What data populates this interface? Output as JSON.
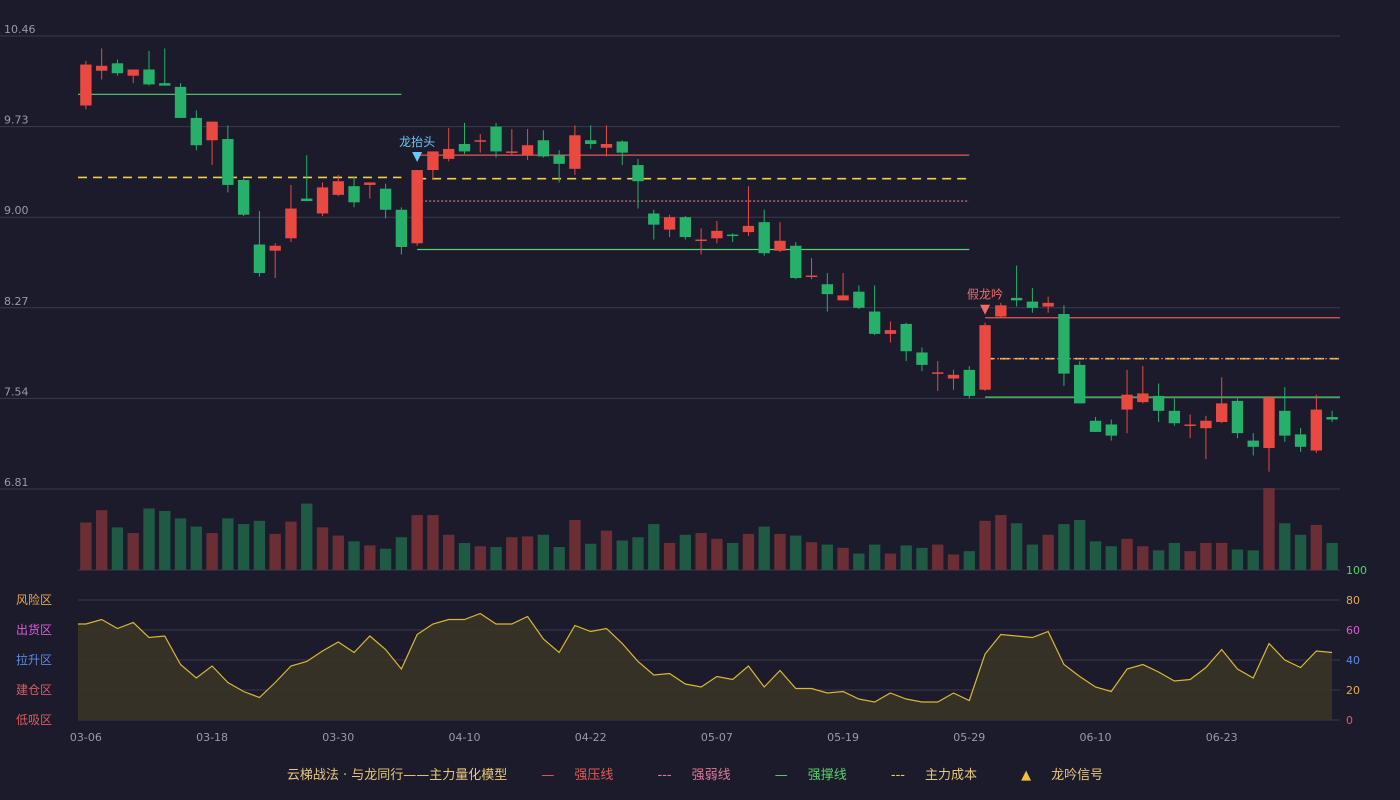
{
  "colors": {
    "background": "#1b1b2b",
    "up": "#e84a42",
    "down": "#27b06a",
    "grid": "#3a3a4e",
    "axis_text": "#9a9aa6",
    "strong_pressure": "#e05a5a",
    "weak_line": "#e07a7a",
    "support": "#5ad06a",
    "cost": "#f0d040",
    "osc_line": "#d9b830",
    "osc_fill": "#3a3426"
  },
  "chart_data": {
    "type": "candlestick",
    "price_ticks": [
      "10.46",
      "9.73",
      "9.00",
      "8.27",
      "7.54",
      "6.81"
    ],
    "price_range": [
      6.81,
      10.46
    ],
    "x_ticks": [
      {
        "label": "03-06",
        "index": 0
      },
      {
        "label": "03-18",
        "index": 8
      },
      {
        "label": "03-30",
        "index": 16
      },
      {
        "label": "04-10",
        "index": 24
      },
      {
        "label": "04-22",
        "index": 32
      },
      {
        "label": "05-07",
        "index": 40
      },
      {
        "label": "05-19",
        "index": 48
      },
      {
        "label": "05-29",
        "index": 56
      },
      {
        "label": "06-10",
        "index": 64
      },
      {
        "label": "06-23",
        "index": 72
      }
    ],
    "ohlc": [
      [
        9.9,
        10.26,
        9.87,
        10.23
      ],
      [
        10.18,
        10.36,
        10.11,
        10.22
      ],
      [
        10.24,
        10.27,
        10.14,
        10.16
      ],
      [
        10.14,
        10.19,
        10.08,
        10.19
      ],
      [
        10.19,
        10.34,
        10.06,
        10.07
      ],
      [
        10.08,
        10.36,
        10.07,
        10.06
      ],
      [
        10.05,
        10.08,
        9.8,
        9.8
      ],
      [
        9.8,
        9.86,
        9.54,
        9.58
      ],
      [
        9.62,
        9.77,
        9.42,
        9.77
      ],
      [
        9.63,
        9.74,
        9.2,
        9.26
      ],
      [
        9.3,
        9.31,
        9.01,
        9.02
      ],
      [
        8.78,
        9.05,
        8.52,
        8.55
      ],
      [
        8.73,
        8.79,
        8.51,
        8.77
      ],
      [
        8.83,
        9.26,
        8.8,
        9.07
      ],
      [
        9.15,
        9.5,
        9.14,
        9.13
      ],
      [
        9.03,
        9.28,
        9.01,
        9.24
      ],
      [
        9.18,
        9.34,
        9.17,
        9.29
      ],
      [
        9.25,
        9.33,
        9.08,
        9.12
      ],
      [
        9.26,
        9.28,
        9.15,
        9.28
      ],
      [
        9.23,
        9.27,
        8.99,
        9.06
      ],
      [
        9.06,
        9.08,
        8.7,
        8.76
      ],
      [
        8.79,
        9.38,
        8.77,
        9.38
      ],
      [
        9.38,
        9.53,
        9.3,
        9.53
      ],
      [
        9.47,
        9.72,
        9.45,
        9.55
      ],
      [
        9.59,
        9.76,
        9.51,
        9.53
      ],
      [
        9.61,
        9.67,
        9.52,
        9.62
      ],
      [
        9.73,
        9.76,
        9.48,
        9.53
      ],
      [
        9.53,
        9.71,
        9.5,
        9.53
      ],
      [
        9.5,
        9.71,
        9.46,
        9.58
      ],
      [
        9.62,
        9.7,
        9.48,
        9.49
      ],
      [
        9.5,
        9.54,
        9.28,
        9.43
      ],
      [
        9.39,
        9.74,
        9.34,
        9.66
      ],
      [
        9.62,
        9.74,
        9.55,
        9.59
      ],
      [
        9.56,
        9.74,
        9.49,
        9.59
      ],
      [
        9.61,
        9.62,
        9.42,
        9.52
      ],
      [
        9.42,
        9.47,
        9.07,
        9.29
      ],
      [
        9.03,
        9.06,
        8.82,
        8.94
      ],
      [
        8.9,
        9.02,
        8.84,
        9.0
      ],
      [
        9.0,
        9.01,
        8.82,
        8.84
      ],
      [
        8.82,
        8.91,
        8.7,
        8.82
      ],
      [
        8.83,
        8.97,
        8.79,
        8.89
      ],
      [
        8.86,
        8.87,
        8.8,
        8.85
      ],
      [
        8.88,
        9.25,
        8.85,
        8.93
      ],
      [
        8.96,
        9.06,
        8.69,
        8.71
      ],
      [
        8.73,
        8.96,
        8.72,
        8.81
      ],
      [
        8.77,
        8.8,
        8.5,
        8.51
      ],
      [
        8.53,
        8.67,
        8.5,
        8.53
      ],
      [
        8.46,
        8.55,
        8.24,
        8.38
      ],
      [
        8.33,
        8.55,
        8.33,
        8.37
      ],
      [
        8.4,
        8.45,
        8.26,
        8.27
      ],
      [
        8.24,
        8.45,
        8.05,
        8.06
      ],
      [
        8.06,
        8.16,
        7.99,
        8.09
      ],
      [
        8.14,
        8.15,
        7.84,
        7.92
      ],
      [
        7.91,
        7.95,
        7.76,
        7.81
      ],
      [
        7.75,
        7.84,
        7.6,
        7.75
      ],
      [
        7.7,
        7.77,
        7.61,
        7.73
      ],
      [
        7.77,
        7.8,
        7.54,
        7.56
      ],
      [
        7.61,
        8.15,
        7.6,
        8.13
      ],
      [
        8.2,
        8.31,
        8.19,
        8.29
      ],
      [
        8.35,
        8.61,
        8.28,
        8.33
      ],
      [
        8.32,
        8.43,
        8.23,
        8.27
      ],
      [
        8.28,
        8.36,
        8.23,
        8.31
      ],
      [
        8.22,
        8.29,
        7.64,
        7.74
      ],
      [
        7.81,
        7.84,
        7.5,
        7.5
      ],
      [
        7.36,
        7.39,
        7.27,
        7.27
      ],
      [
        7.33,
        7.37,
        7.2,
        7.24
      ],
      [
        7.45,
        7.77,
        7.26,
        7.57
      ],
      [
        7.51,
        7.8,
        7.5,
        7.58
      ],
      [
        7.56,
        7.66,
        7.35,
        7.44
      ],
      [
        7.44,
        7.54,
        7.32,
        7.34
      ],
      [
        7.32,
        7.41,
        7.22,
        7.33
      ],
      [
        7.3,
        7.4,
        7.05,
        7.36
      ],
      [
        7.35,
        7.71,
        7.34,
        7.5
      ],
      [
        7.52,
        7.54,
        7.22,
        7.26
      ],
      [
        7.2,
        7.26,
        7.08,
        7.15
      ],
      [
        7.14,
        7.52,
        6.95,
        7.55
      ],
      [
        7.44,
        7.63,
        7.19,
        7.24
      ],
      [
        7.25,
        7.3,
        7.11,
        7.15
      ],
      [
        7.12,
        7.57,
        7.1,
        7.45
      ],
      [
        7.39,
        7.44,
        7.35,
        7.37
      ]
    ],
    "volume": [
      58,
      73,
      52,
      45,
      75,
      72,
      63,
      53,
      45,
      63,
      56,
      60,
      44,
      59,
      81,
      52,
      42,
      35,
      30,
      26,
      40,
      67,
      67,
      43,
      33,
      29,
      28,
      40,
      41,
      43,
      28,
      61,
      32,
      48,
      36,
      40,
      56,
      33,
      43,
      45,
      38,
      33,
      44,
      53,
      44,
      42,
      34,
      31,
      27,
      20,
      31,
      20,
      30,
      27,
      31,
      19,
      23,
      60,
      67,
      57,
      31,
      43,
      56,
      61,
      35,
      29,
      38,
      29,
      24,
      33,
      23,
      33,
      33,
      25,
      24,
      100,
      57,
      43,
      55,
      33
    ],
    "volume_max": 100,
    "oscillator": {
      "values": [
        64,
        67,
        61,
        65,
        55,
        56,
        37,
        28,
        36,
        25,
        19,
        15,
        25,
        36,
        39,
        46,
        52,
        45,
        56,
        47,
        34,
        57,
        64,
        67,
        67,
        71,
        64,
        64,
        69,
        54,
        45,
        63,
        59,
        61,
        51,
        39,
        30,
        31,
        24,
        22,
        29,
        27,
        36,
        22,
        33,
        21,
        21,
        18,
        19,
        14,
        12,
        18,
        14,
        12,
        12,
        18,
        13,
        44,
        57,
        56,
        55,
        59,
        37,
        29,
        22,
        19,
        34,
        37,
        32,
        26,
        27,
        35,
        47,
        34,
        28,
        51,
        40,
        35,
        46,
        45
      ],
      "y_ticks": [
        "100",
        "80",
        "60",
        "40",
        "20",
        "0"
      ],
      "y_tick_colors": [
        "#5ad06a",
        "#e8a94a",
        "#e05ad8",
        "#5a8ae8",
        "#e8a94a",
        "#e05a5a"
      ],
      "zones": [
        "风险区",
        "出货区",
        "拉升区",
        "建仓区",
        "低吸区"
      ],
      "zone_colors": [
        "#e8a94a",
        "#e05ad8",
        "#5a8ae8",
        "#e05a5a",
        "#e05a5a"
      ]
    },
    "level_lines": [
      {
        "kind": "support",
        "price": 9.99,
        "from": 0,
        "to": 20
      },
      {
        "kind": "cost",
        "price": 9.32,
        "from": 0,
        "to": 20
      },
      {
        "kind": "pressure",
        "price": 9.5,
        "from": 21,
        "to": 56
      },
      {
        "kind": "cost",
        "price": 9.31,
        "from": 21,
        "to": 56
      },
      {
        "kind": "weak",
        "price": 9.13,
        "from": 21,
        "to": 56
      },
      {
        "kind": "support",
        "price": 8.74,
        "from": 21,
        "to": 56
      },
      {
        "kind": "pressure",
        "price": 8.19,
        "from": 57,
        "to": 79
      },
      {
        "kind": "cost",
        "price": 7.86,
        "from": 57,
        "to": 79
      },
      {
        "kind": "weak",
        "price": 7.86,
        "from": 57,
        "to": 79
      },
      {
        "kind": "support",
        "price": 7.55,
        "from": 57,
        "to": 79
      }
    ],
    "signals": [
      {
        "index": 21,
        "label": "龙抬头",
        "color": "#6ac8f8"
      },
      {
        "index": 57,
        "label": "假龙吟",
        "color": "#f06a6a"
      }
    ]
  },
  "legend": {
    "title": "云梯战法 · 与龙同行——主力量化模型",
    "items": [
      {
        "mark": "—",
        "label": "强压线",
        "color": "#e05a5a"
      },
      {
        "mark": "---",
        "label": "强弱线",
        "color": "#e07a9a"
      },
      {
        "mark": "—",
        "label": "强撑线",
        "color": "#5ad06a"
      },
      {
        "mark": "---",
        "label": "主力成本",
        "color": "#f0d040"
      },
      {
        "mark": "▲",
        "label": "龙吟信号",
        "color": "#f0c040"
      }
    ]
  }
}
